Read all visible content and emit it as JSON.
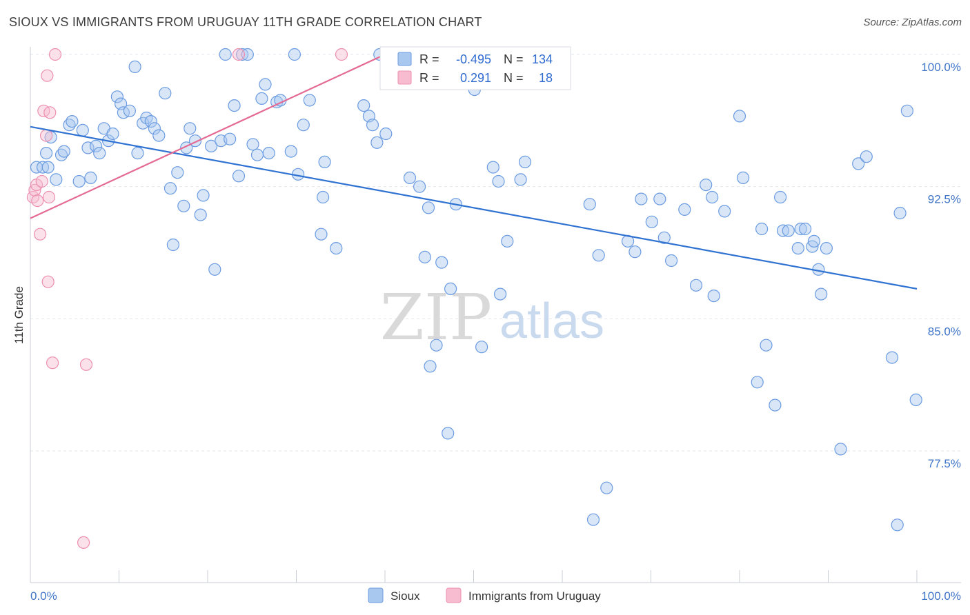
{
  "title": "SIOUX VS IMMIGRANTS FROM URUGUAY 11TH GRADE CORRELATION CHART",
  "source": "Source: ZipAtlas.com",
  "watermark": {
    "zip": "ZIP",
    "atlas": "atlas"
  },
  "colors": {
    "sioux_fill": "#a9c8ef",
    "sioux_stroke": "#6b9be0",
    "sioux_line": "#2f72d2",
    "uruguay_fill": "#f7bcd0",
    "uruguay_stroke": "#ec8fb0",
    "uruguay_line": "#e46a93",
    "tick_text": "#3f74c8",
    "grid": "#e2e6ed"
  },
  "stats": {
    "r_label": "R =",
    "n_label": "N =",
    "sioux": {
      "r": "-0.495",
      "n": "134"
    },
    "uruguay": {
      "r": "0.291",
      "n": "18"
    }
  },
  "chart_data": {
    "type": "scatter",
    "title": "SIOUX VS IMMIGRANTS FROM URUGUAY 11TH GRADE CORRELATION CHART",
    "xlabel": "",
    "ylabel": "11th Grade",
    "xlim": [
      0,
      100
    ],
    "ylim": [
      70.5,
      101.4
    ],
    "x_tick_labels": [
      "0.0%",
      "100.0%"
    ],
    "y_ticks": [
      77.5,
      85.0,
      92.5,
      100.0
    ],
    "y_tick_labels": [
      "77.5%",
      "85.0%",
      "92.5%",
      "100.0%"
    ],
    "grid": true,
    "legend_position": "bottom-center",
    "series": [
      {
        "name": "Sioux",
        "trend": {
          "x": [
            0,
            100
          ],
          "y": [
            95.9,
            86.7
          ]
        },
        "points": [
          [
            0.7,
            93.6
          ],
          [
            1.4,
            93.6
          ],
          [
            1.8,
            94.4
          ],
          [
            2.3,
            95.3
          ],
          [
            2.9,
            92.9
          ],
          [
            3.5,
            94.3
          ],
          [
            3.8,
            94.5
          ],
          [
            4.4,
            96.0
          ],
          [
            4.7,
            96.2
          ],
          [
            5.5,
            92.8
          ],
          [
            5.9,
            95.7
          ],
          [
            6.5,
            94.7
          ],
          [
            6.8,
            93.0
          ],
          [
            7.4,
            94.8
          ],
          [
            7.8,
            94.4
          ],
          [
            8.3,
            95.8
          ],
          [
            8.8,
            95.1
          ],
          [
            9.3,
            95.5
          ],
          [
            9.8,
            97.6
          ],
          [
            10.2,
            97.2
          ],
          [
            10.5,
            96.7
          ],
          [
            11.2,
            96.8
          ],
          [
            11.8,
            99.3
          ],
          [
            12.1,
            94.4
          ],
          [
            12.7,
            96.1
          ],
          [
            13.1,
            96.4
          ],
          [
            13.6,
            96.2
          ],
          [
            14.0,
            95.8
          ],
          [
            14.5,
            95.4
          ],
          [
            15.2,
            97.8
          ],
          [
            15.8,
            92.4
          ],
          [
            16.1,
            89.2
          ],
          [
            16.6,
            93.3
          ],
          [
            17.3,
            91.4
          ],
          [
            17.6,
            94.7
          ],
          [
            18.0,
            95.8
          ],
          [
            18.6,
            95.1
          ],
          [
            19.2,
            90.9
          ],
          [
            19.5,
            92.0
          ],
          [
            20.4,
            94.8
          ],
          [
            20.8,
            87.8
          ],
          [
            21.5,
            95.1
          ],
          [
            22.0,
            100.0
          ],
          [
            22.5,
            95.2
          ],
          [
            23.0,
            97.1
          ],
          [
            23.5,
            93.1
          ],
          [
            23.9,
            100.0
          ],
          [
            24.5,
            100.0
          ],
          [
            25.1,
            94.9
          ],
          [
            25.6,
            94.3
          ],
          [
            26.1,
            97.5
          ],
          [
            26.5,
            98.3
          ],
          [
            26.9,
            94.4
          ],
          [
            27.8,
            97.3
          ],
          [
            28.2,
            97.4
          ],
          [
            29.4,
            94.5
          ],
          [
            29.8,
            100.0
          ],
          [
            30.2,
            93.2
          ],
          [
            30.8,
            96.0
          ],
          [
            31.5,
            97.4
          ],
          [
            32.8,
            89.8
          ],
          [
            33.0,
            91.9
          ],
          [
            33.2,
            93.9
          ],
          [
            34.5,
            89.0
          ],
          [
            37.6,
            97.1
          ],
          [
            38.2,
            96.5
          ],
          [
            38.6,
            96.0
          ],
          [
            39.1,
            95.0
          ],
          [
            39.4,
            100.0
          ],
          [
            40.1,
            95.5
          ],
          [
            42.8,
            93.0
          ],
          [
            43.2,
            100.0
          ],
          [
            43.9,
            92.5
          ],
          [
            44.5,
            88.5
          ],
          [
            44.9,
            91.3
          ],
          [
            45.1,
            82.3
          ],
          [
            45.8,
            83.5
          ],
          [
            46.4,
            88.2
          ],
          [
            47.1,
            78.5
          ],
          [
            47.4,
            86.7
          ],
          [
            48.0,
            91.5
          ],
          [
            50.1,
            98.0
          ],
          [
            50.9,
            83.4
          ],
          [
            52.2,
            93.6
          ],
          [
            52.8,
            92.8
          ],
          [
            53.0,
            86.4
          ],
          [
            53.8,
            89.4
          ],
          [
            55.3,
            92.9
          ],
          [
            55.8,
            93.9
          ],
          [
            55.9,
            100.0
          ],
          [
            60.2,
            100.0
          ],
          [
            63.1,
            91.5
          ],
          [
            63.5,
            73.6
          ],
          [
            64.1,
            88.6
          ],
          [
            65.0,
            75.4
          ],
          [
            67.4,
            89.4
          ],
          [
            68.2,
            88.8
          ],
          [
            68.9,
            91.8
          ],
          [
            70.1,
            90.5
          ],
          [
            71.0,
            91.8
          ],
          [
            71.5,
            89.6
          ],
          [
            72.3,
            88.3
          ],
          [
            73.8,
            91.2
          ],
          [
            75.1,
            86.9
          ],
          [
            76.2,
            92.6
          ],
          [
            76.9,
            91.9
          ],
          [
            77.1,
            86.3
          ],
          [
            78.3,
            91.1
          ],
          [
            80.0,
            96.5
          ],
          [
            80.4,
            93.0
          ],
          [
            82.0,
            81.4
          ],
          [
            82.5,
            90.1
          ],
          [
            83.0,
            83.5
          ],
          [
            84.0,
            80.1
          ],
          [
            84.6,
            91.9
          ],
          [
            84.9,
            90.0
          ],
          [
            85.5,
            90.0
          ],
          [
            86.6,
            89.0
          ],
          [
            86.9,
            90.1
          ],
          [
            87.4,
            90.1
          ],
          [
            88.2,
            89.1
          ],
          [
            88.4,
            89.4
          ],
          [
            88.9,
            87.8
          ],
          [
            89.2,
            86.4
          ],
          [
            89.8,
            89.0
          ],
          [
            91.4,
            77.6
          ],
          [
            93.4,
            93.8
          ],
          [
            94.3,
            94.2
          ],
          [
            97.2,
            82.8
          ],
          [
            97.8,
            73.3
          ],
          [
            98.1,
            91.0
          ],
          [
            98.9,
            96.8
          ],
          [
            99.9,
            80.4
          ],
          [
            2.0,
            93.6
          ]
        ]
      },
      {
        "name": "Immigrants from Uruguay",
        "trend": {
          "x": [
            0,
            40.0
          ],
          "y": [
            90.7,
            100.0
          ]
        },
        "points": [
          [
            0.3,
            91.9
          ],
          [
            0.5,
            92.3
          ],
          [
            0.7,
            92.6
          ],
          [
            0.8,
            91.7
          ],
          [
            1.1,
            89.8
          ],
          [
            1.3,
            92.8
          ],
          [
            1.5,
            96.8
          ],
          [
            1.8,
            95.4
          ],
          [
            1.9,
            98.8
          ],
          [
            2.0,
            87.1
          ],
          [
            2.1,
            91.9
          ],
          [
            2.2,
            96.7
          ],
          [
            2.5,
            82.5
          ],
          [
            2.8,
            100.0
          ],
          [
            6.3,
            82.4
          ],
          [
            6.0,
            72.3
          ],
          [
            23.5,
            100.0
          ],
          [
            35.1,
            100.0
          ]
        ]
      }
    ]
  },
  "legend": [
    {
      "label": "Sioux",
      "key": "sioux"
    },
    {
      "label": "Immigrants from Uruguay",
      "key": "uruguay"
    }
  ]
}
